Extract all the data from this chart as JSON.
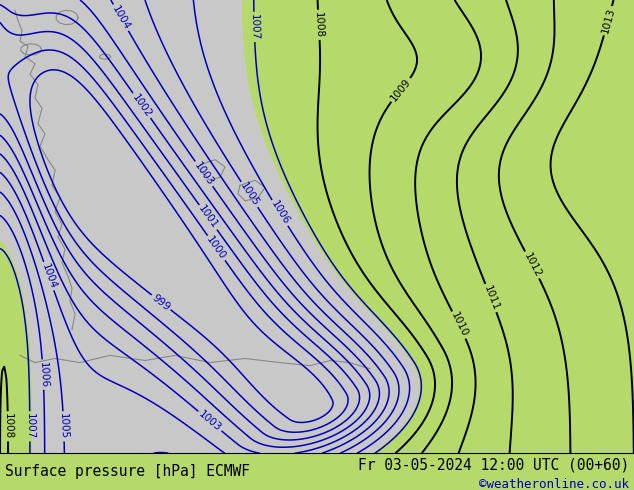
{
  "title_left": "Surface pressure [hPa] ECMWF",
  "title_right": "Fr 03-05-2024 12:00 UTC (00+60)",
  "watermark": "©weatheronline.co.uk",
  "background_color": "#b5d96b",
  "gray_color": "#c8c8c8",
  "isobar_color_blue": "#0000bb",
  "isobar_color_black": "#000000",
  "isobar_color_red": "#cc0000",
  "coast_color": "#888888",
  "fontsize_title": 10.5,
  "fontsize_watermark": 9,
  "fontsize_labels": 7.5
}
